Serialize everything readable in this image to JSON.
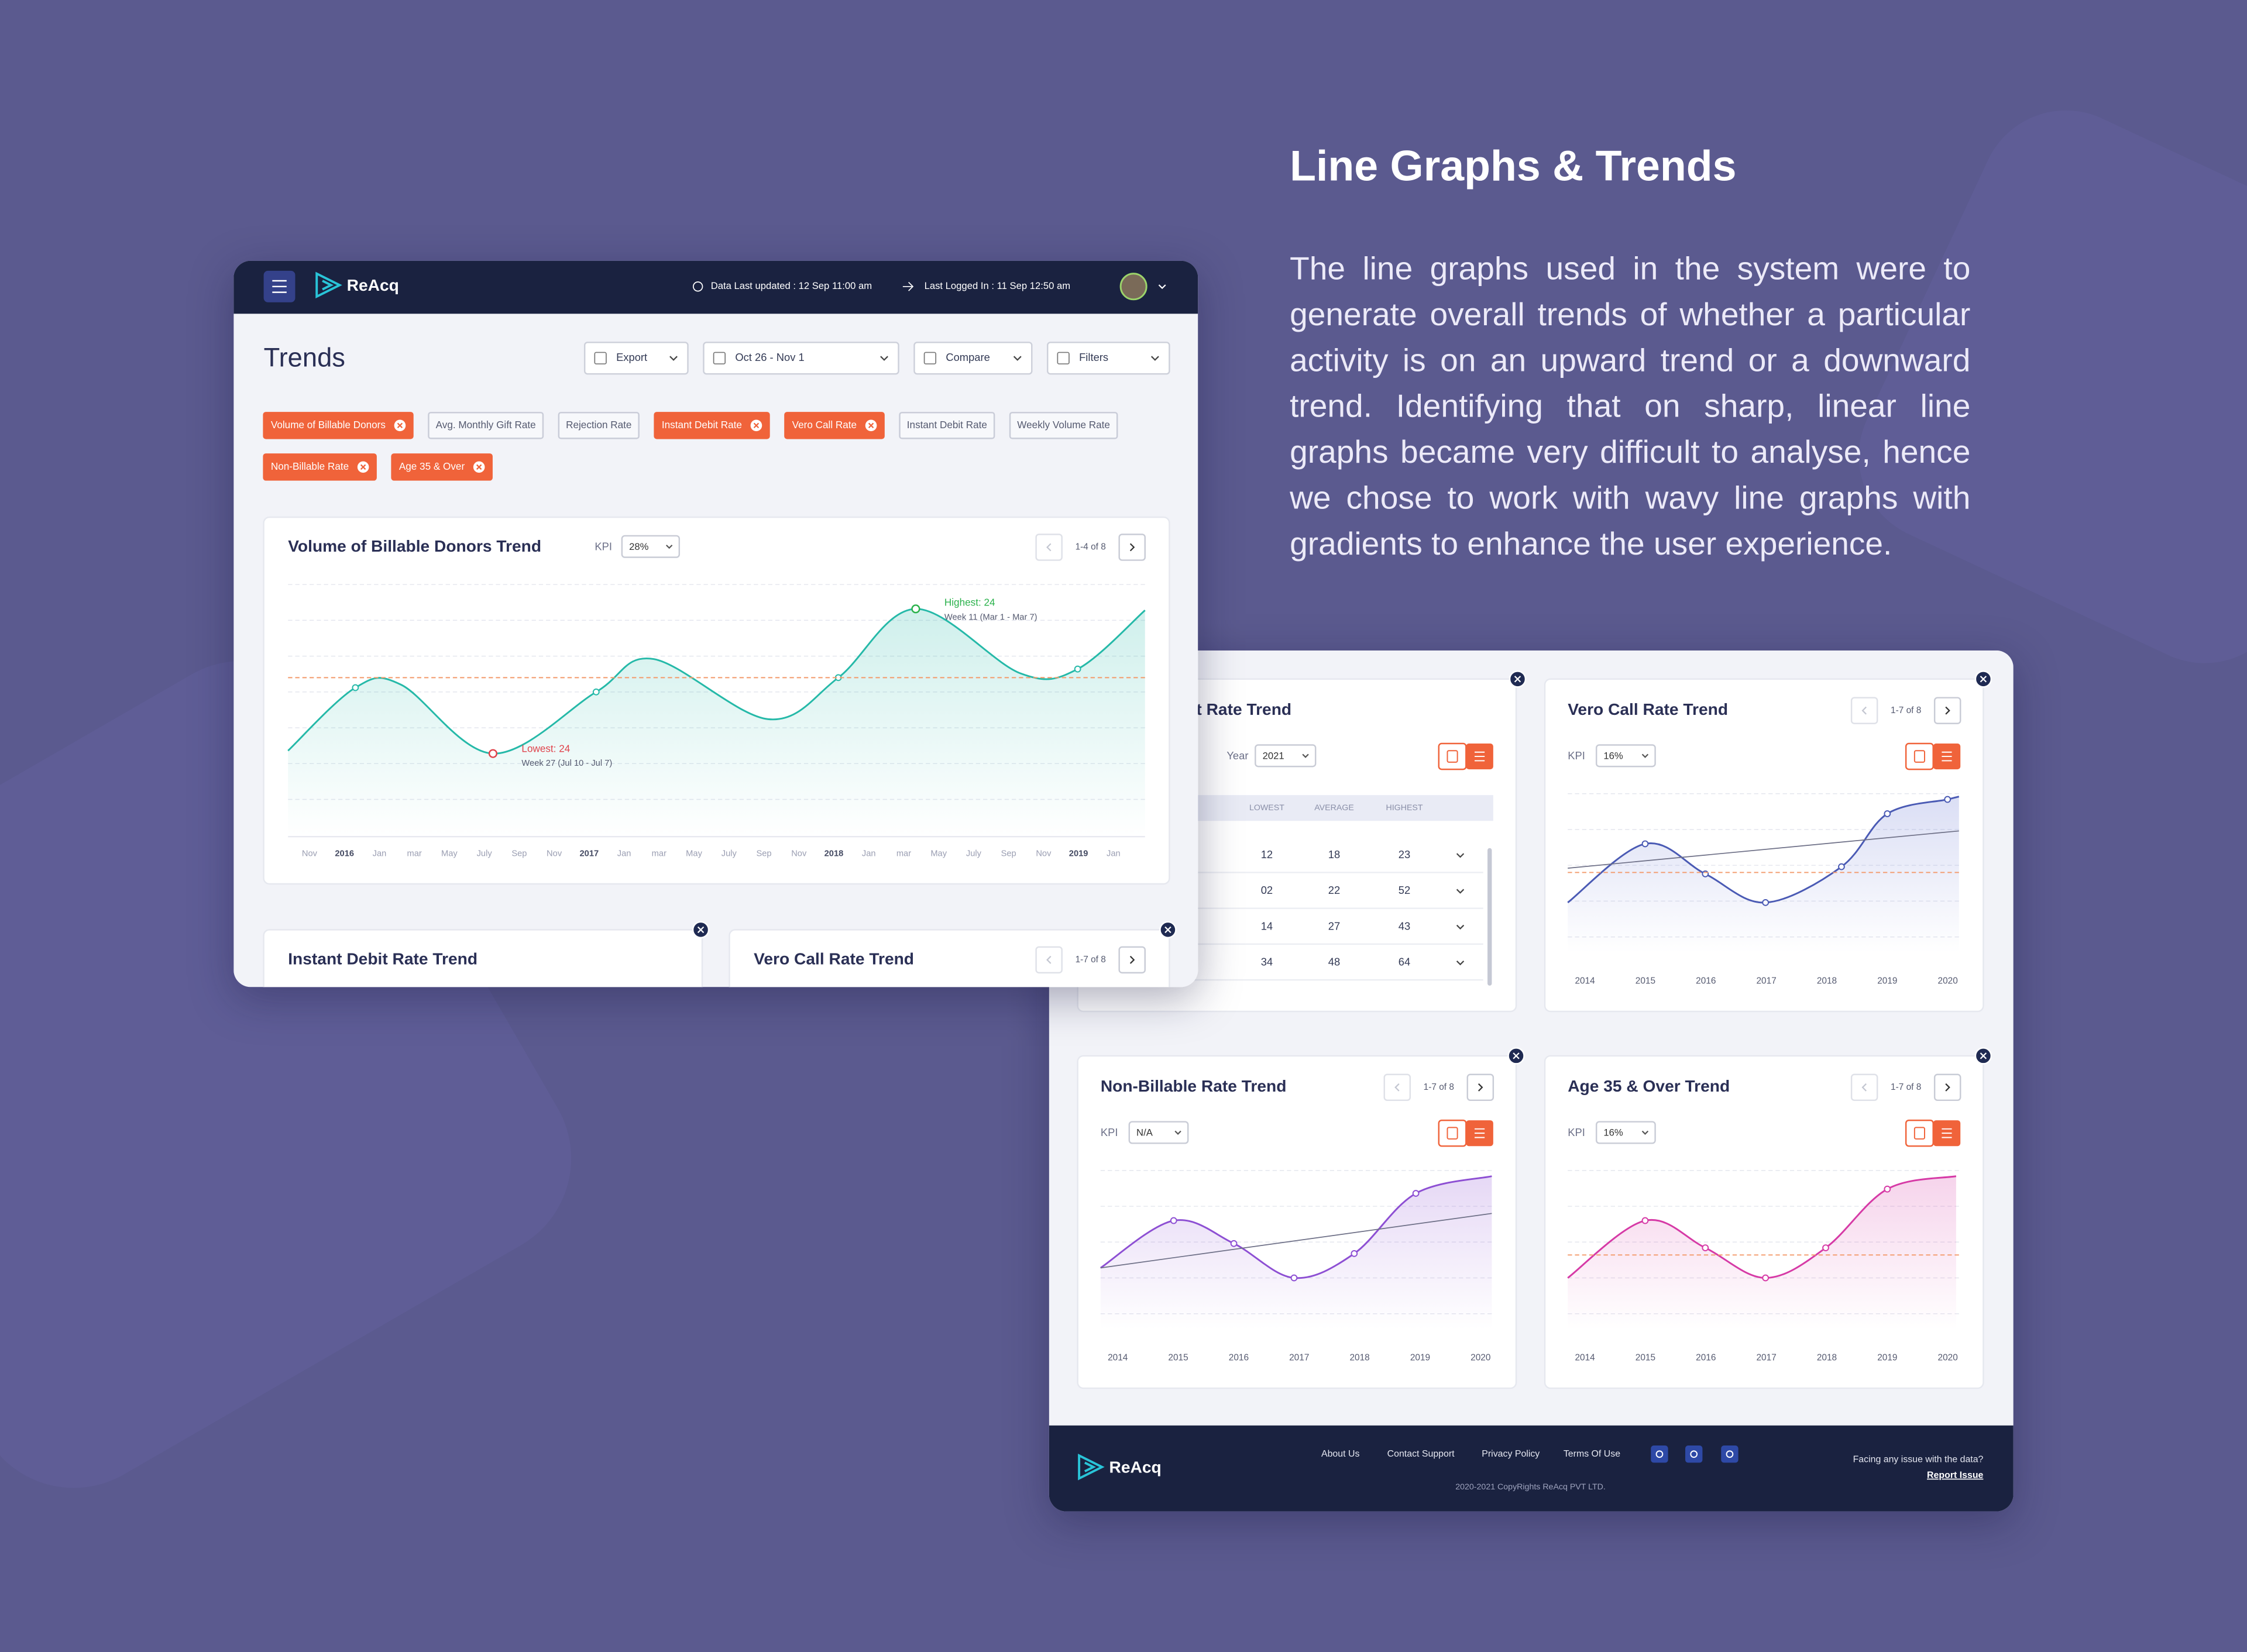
{
  "heading": {
    "title": "Line Graphs & Trends",
    "body": "The line graphs used in the system were to generate overall trends of whether a particular activity is on an upward trend or a downward trend. Identifying that on sharp, linear line graphs became very difficult to analyse, hence we chose to work with wavy line graphs with gradients to enhance the user experience."
  },
  "dashboard": {
    "brand": "ReAcq",
    "data_updated": "Data Last updated : 12 Sep 11:00 am",
    "last_logged": "Last Logged In : 11 Sep 12:50 am",
    "page_title": "Trends",
    "toolbar": [
      "Export",
      "Oct 26 - Nov 1",
      "Compare",
      "Filters"
    ],
    "filters": [
      {
        "label": "Volume of Billable Donors",
        "active": true
      },
      {
        "label": "Avg. Monthly Gift Rate",
        "active": false
      },
      {
        "label": "Rejection Rate",
        "active": false
      },
      {
        "label": "Instant Debit Rate",
        "active": true
      },
      {
        "label": "Vero Call Rate",
        "active": true
      },
      {
        "label": "Instant Debit Rate",
        "active": false
      },
      {
        "label": "Weekly Volume Rate",
        "active": false
      },
      {
        "label": "Non-Billable Rate",
        "active": true
      },
      {
        "label": "Age 35 & Over",
        "active": true
      }
    ],
    "main_chart": {
      "title": "Volume of Billable Donors Trend",
      "kpi_label": "KPI",
      "kpi": "28%",
      "pager": "1-4 of 8",
      "highest": {
        "label": "Highest: 24",
        "week": "Week 11 (Mar 1 - Mar 7)"
      },
      "lowest": {
        "label": "Lowest: 24",
        "week": "Week 27 (Jul 10 - Jul 7)"
      },
      "x_labels": [
        "Nov",
        "2016",
        "Jan",
        "mar",
        "May",
        "July",
        "Sep",
        "Nov",
        "2017",
        "Jan",
        "mar",
        "May",
        "July",
        "Sep",
        "Nov",
        "2018",
        "Jan",
        "mar",
        "May",
        "July",
        "Sep",
        "Nov",
        "2019",
        "Jan"
      ]
    },
    "cards": [
      {
        "title": "Instant Debit Rate Trend"
      },
      {
        "title": "Vero Call Rate Trend",
        "pager": "1-7 of 8"
      }
    ]
  },
  "report": {
    "table_card": {
      "title": "Instant Debit Rate Trend",
      "year_label": "Year",
      "year": "2021",
      "columns": [
        "LOWEST",
        "AVERAGE",
        "HIGHEST"
      ],
      "rows": [
        [
          "12",
          "18",
          "23"
        ],
        [
          "02",
          "22",
          "52"
        ],
        [
          "14",
          "27",
          "43"
        ],
        [
          "34",
          "48",
          "64"
        ]
      ]
    },
    "chart_cards": [
      {
        "title": "Vero Call Rate Trend",
        "kpi_label": "KPI",
        "kpi": "16%",
        "pager": "1-7 of 8",
        "color": "#4a5ab4",
        "x_labels": [
          "2014",
          "2015",
          "2016",
          "2017",
          "2018",
          "2019",
          "2020"
        ]
      },
      {
        "title": "Non-Billable Rate Trend",
        "kpi_label": "KPI",
        "kpi": "N/A",
        "pager": "1-7 of 8",
        "color": "#8d4fd3",
        "x_labels": [
          "2014",
          "2015",
          "2016",
          "2017",
          "2018",
          "2019",
          "2020"
        ]
      },
      {
        "title": "Age 35 & Over Trend",
        "kpi_label": "KPI",
        "kpi": "16%",
        "pager": "1-7 of 8",
        "color": "#d63aa6",
        "x_labels": [
          "2014",
          "2015",
          "2016",
          "2017",
          "2018",
          "2019",
          "2020"
        ]
      }
    ],
    "footer": {
      "brand": "ReAcq",
      "links": [
        "About Us",
        "Contact Support",
        "Privacy Policy",
        "Terms Of Use"
      ],
      "copyright": "2020-2021 CopyRights ReAcq PVT LTD.",
      "issue_text": "Facing any issue with the data?",
      "issue_link": "Report Issue"
    }
  }
}
